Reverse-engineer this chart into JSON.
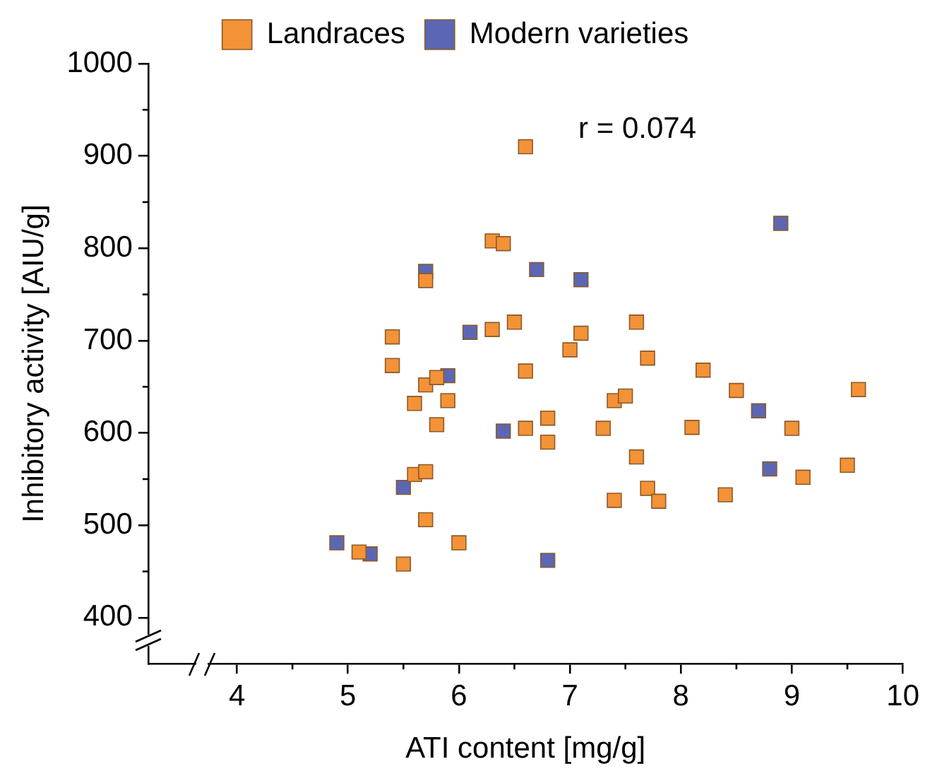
{
  "chart_data": {
    "type": "scatter",
    "xlabel": "ATI content [mg/g]",
    "ylabel": "Inhibitory activity [AIU/g]",
    "annotations": [
      "r = 0.074"
    ],
    "xlim": [
      3.2,
      10
    ],
    "xticks": [
      4,
      5,
      6,
      7,
      8,
      9,
      10
    ],
    "ylim": [
      350,
      1000
    ],
    "yticks": [
      400,
      500,
      600,
      700,
      800,
      900,
      1000
    ],
    "grid": false,
    "legend": "top",
    "marker": "square",
    "series": [
      {
        "name": "Landraces",
        "color": "#f39237",
        "x": [
          6.6,
          6.3,
          6.4,
          5.7,
          5.4,
          5.4,
          6.5,
          6.3,
          6.6,
          7.1,
          7.0,
          7.6,
          7.7,
          8.2,
          5.7,
          5.8,
          5.9,
          5.6,
          5.8,
          6.8,
          6.6,
          6.8,
          7.3,
          7.4,
          7.5,
          8.1,
          8.5,
          9.0,
          9.6,
          5.6,
          5.7,
          5.7,
          6.0,
          5.1,
          5.5,
          7.6,
          7.4,
          7.7,
          7.8,
          8.4,
          9.1,
          9.5
        ],
        "values": [
          910,
          808,
          805,
          765,
          704,
          673,
          720,
          712,
          667,
          708,
          690,
          720,
          681,
          668,
          652,
          660,
          635,
          632,
          609,
          616,
          605,
          590,
          605,
          635,
          640,
          606,
          646,
          605,
          647,
          555,
          558,
          506,
          481,
          471,
          458,
          574,
          527,
          540,
          526,
          533,
          552,
          565
        ]
      },
      {
        "name": "Modern varieties",
        "color": "#5b67b4",
        "x": [
          8.9,
          5.7,
          6.7,
          7.1,
          6.1,
          5.9,
          6.4,
          5.5,
          4.9,
          5.2,
          6.8,
          8.7,
          8.8
        ],
        "values": [
          827,
          775,
          777,
          766,
          709,
          662,
          602,
          541,
          481,
          469,
          462,
          624,
          561
        ]
      }
    ]
  }
}
